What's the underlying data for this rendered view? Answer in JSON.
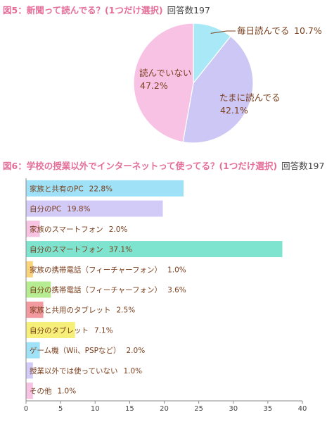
{
  "chart_data": [
    {
      "type": "pie",
      "title": "図5：新聞って読んでる？(1つだけ選択)",
      "title_note": "回答数197",
      "categories": [
        "毎日読んでる",
        "たまに読んでる",
        "読んでいない"
      ],
      "values": [
        10.7,
        42.1,
        47.2
      ],
      "value_labels": [
        "10.7%",
        "42.1%",
        "47.2%"
      ],
      "colors": [
        "#a9e9f7",
        "#cdc7f5",
        "#f8c2e5"
      ]
    },
    {
      "type": "bar",
      "orientation": "horizontal",
      "title": "図6：学校の授業以外でインターネットって使ってる？(1つだけ選択)",
      "title_note": "回答数197",
      "categories": [
        "家族と共有のPC",
        "自分のPC",
        "家族のスマートフォン",
        "自分のスマートフォン",
        "家族の携帯電話（フィーチャーフォン）",
        "自分の携帯電話（フィーチャーフォン）",
        "家族と共用のタブレット",
        "自分のタブレット",
        "ゲーム機（Wii、PSPなど）",
        "授業以外では使っていない",
        "その他"
      ],
      "values": [
        22.8,
        19.8,
        2.0,
        37.1,
        1.0,
        3.6,
        2.5,
        7.1,
        2.0,
        1.0,
        1.0
      ],
      "value_labels": [
        "22.8%",
        "19.8%",
        "2.0%",
        "37.1%",
        "1.0%",
        "3.6%",
        "2.5%",
        "7.1%",
        "2.0%",
        "1.0%",
        "1.0%"
      ],
      "colors": [
        "#9fe2f7",
        "#d2cbf8",
        "#f6c3e2",
        "#7ee3cf",
        "#f9d47c",
        "#b6ec92",
        "#f29a9f",
        "#f6f07a",
        "#9fe2f7",
        "#d2cbf8",
        "#f6c3e2"
      ],
      "xlim": [
        0,
        40
      ],
      "xticks": [
        "0",
        "5",
        "10",
        "15",
        "20",
        "25",
        "30",
        "35",
        "40"
      ],
      "grid": false
    }
  ],
  "colors": {
    "title": "#e46e98",
    "label": "#7a3e1c",
    "axis": "#8a8a8a"
  }
}
